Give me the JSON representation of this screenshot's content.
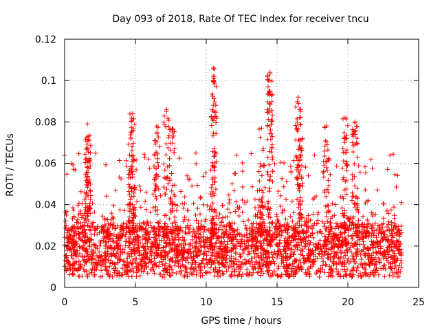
{
  "chart_data": {
    "type": "scatter",
    "title": "Day 093 of 2018, Rate Of TEC Index for receiver tncu",
    "xlabel": "GPS time / hours",
    "ylabel": "ROTI / TECUs",
    "xlim": [
      0,
      25
    ],
    "ylim": [
      0,
      0.12
    ],
    "xticks": [
      0,
      5,
      10,
      15,
      20,
      25
    ],
    "yticks": [
      0,
      0.02,
      0.04,
      0.06,
      0.08,
      0.1,
      0.12
    ],
    "xtick_labels": [
      "0",
      "5",
      "10",
      "15",
      "20",
      "25"
    ],
    "ytick_labels": [
      "0",
      "0.02",
      "0.04",
      "0.06",
      "0.08",
      "0.1",
      "0.12"
    ],
    "grid": true,
    "marker": "+",
    "marker_color": "#ff0000",
    "series": [
      {
        "name": "ROTI",
        "note": "dense band of points, mostly 0.005–0.03 TECU/s, with notable spikes",
        "x_range": [
          0,
          23.8
        ],
        "typical_range": [
          0.005,
          0.03
        ],
        "peaks": [
          {
            "x": 1.6,
            "y": 0.079
          },
          {
            "x": 1.65,
            "y": 0.073
          },
          {
            "x": 4.7,
            "y": 0.075
          },
          {
            "x": 4.8,
            "y": 0.084
          },
          {
            "x": 6.5,
            "y": 0.078
          },
          {
            "x": 7.2,
            "y": 0.086
          },
          {
            "x": 7.6,
            "y": 0.077
          },
          {
            "x": 10.5,
            "y": 0.106
          },
          {
            "x": 10.55,
            "y": 0.101
          },
          {
            "x": 13.9,
            "y": 0.077
          },
          {
            "x": 14.5,
            "y": 0.104
          },
          {
            "x": 14.5,
            "y": 0.1
          },
          {
            "x": 16.5,
            "y": 0.092
          },
          {
            "x": 16.6,
            "y": 0.086
          },
          {
            "x": 18.5,
            "y": 0.078
          },
          {
            "x": 19.8,
            "y": 0.082
          },
          {
            "x": 20.5,
            "y": 0.08
          }
        ]
      }
    ]
  }
}
